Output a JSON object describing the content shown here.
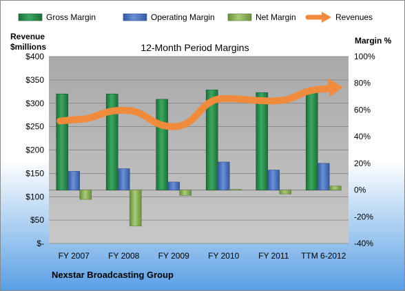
{
  "chart_data": {
    "type": "bar",
    "title": "12-Month Period Margins",
    "company": "Nexstar Broadcasting Group",
    "categories": [
      "FY 2007",
      "FY 2008",
      "FY 2009",
      "FY 2010",
      "FY 2011",
      "TTM 6-2012"
    ],
    "left_axis": {
      "label_line1": "Revenue",
      "label_line2": "$millions",
      "ticks": [
        "$-",
        "$50",
        "$100",
        "$150",
        "$200",
        "$250",
        "$300",
        "$350",
        "$400"
      ],
      "range": [
        0,
        400
      ]
    },
    "right_axis": {
      "label": "Margin %",
      "ticks": [
        "-40%",
        "-20%",
        "0%",
        "20%",
        "40%",
        "60%",
        "80%",
        "100%"
      ],
      "range": [
        -40,
        100
      ]
    },
    "series": [
      {
        "name": "Gross Margin",
        "axis": "right",
        "color": "#2e8b4e",
        "values": [
          72,
          72,
          68,
          75,
          73,
          73
        ]
      },
      {
        "name": "Operating Margin",
        "axis": "right",
        "color": "#4f74c4",
        "values": [
          14,
          16,
          6,
          21,
          15,
          20
        ]
      },
      {
        "name": "Net Margin",
        "axis": "right",
        "color": "#8db35a",
        "values": [
          -7,
          -27,
          -4,
          0.5,
          -3,
          3
        ]
      },
      {
        "name": "Revenues",
        "axis": "left",
        "color": "#f08a3c",
        "type": "line",
        "values": [
          265,
          285,
          250,
          310,
          305,
          330
        ]
      }
    ],
    "grid": true,
    "legend_position": "top"
  }
}
